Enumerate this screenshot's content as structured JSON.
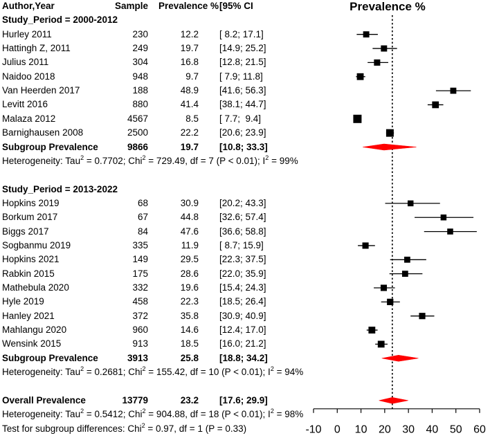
{
  "columns": {
    "author": "Author,Year",
    "sample": "Sample",
    "prevalence": "Prevalence %",
    "ci": "[95% CI"
  },
  "plot_title": "Prevalence %",
  "groups": [
    {
      "title": "Study_Period = 2000-2012",
      "studies": [
        {
          "name": "Hurley 2011",
          "sample": "230",
          "prev": "12.2",
          "ci": "[ 8.2; 17.1]"
        },
        {
          "name": "Hattingh Z, 2011",
          "sample": "249",
          "prev": "19.7",
          "ci": "[14.9; 25.2]"
        },
        {
          "name": "Julius 2011",
          "sample": "304",
          "prev": "16.8",
          "ci": "[12.8; 21.5]"
        },
        {
          "name": "Naidoo 2018",
          "sample": "948",
          "prev": "9.7",
          "ci": "[ 7.9; 11.8]"
        },
        {
          "name": "Van Heerden 2017",
          "sample": "188",
          "prev": "48.9",
          "ci": "[41.6; 56.3]"
        },
        {
          "name": "Levitt 2016",
          "sample": "880",
          "prev": "41.4",
          "ci": "[38.1; 44.7]"
        },
        {
          "name": "Malaza 2012",
          "sample": "4567",
          "prev": "8.5",
          "ci": "[ 7.7;  9.4]"
        },
        {
          "name": "Barnighausen 2008",
          "sample": "2500",
          "prev": "22.2",
          "ci": "[20.6; 23.9]"
        }
      ],
      "subgroup": {
        "label": "Subgroup Prevalence",
        "sample": "9866",
        "prev": "19.7",
        "ci": "[10.8; 33.3]"
      },
      "heterogeneity": {
        "a": "Heterogeneity: Tau",
        "b": " = 0.7702; Chi",
        "c": " = 729.49, df = 7 (P < 0.01); I",
        "d": " = 99%"
      }
    },
    {
      "title": "Study_Period = 2013-2022",
      "studies": [
        {
          "name": "Hopkins 2019",
          "sample": "68",
          "prev": "30.9",
          "ci": "[20.2; 43.3]"
        },
        {
          "name": "Borkum 2017",
          "sample": "67",
          "prev": "44.8",
          "ci": "[32.6; 57.4]"
        },
        {
          "name": "Biggs 2017",
          "sample": "84",
          "prev": "47.6",
          "ci": "[36.6; 58.8]"
        },
        {
          "name": "Sogbanmu 2019",
          "sample": "335",
          "prev": "11.9",
          "ci": "[ 8.7; 15.9]"
        },
        {
          "name": "Hopkins 2021",
          "sample": "149",
          "prev": "29.5",
          "ci": "[22.3; 37.5]"
        },
        {
          "name": "Rabkin 2015",
          "sample": "175",
          "prev": "28.6",
          "ci": "[22.0; 35.9]"
        },
        {
          "name": "Mathebula 2020",
          "sample": "332",
          "prev": "19.6",
          "ci": "[15.4; 24.3]"
        },
        {
          "name": "Hyle 2019",
          "sample": "458",
          "prev": "22.3",
          "ci": "[18.5; 26.4]"
        },
        {
          "name": "Hanley 2021",
          "sample": "372",
          "prev": "35.8",
          "ci": "[30.9; 40.9]"
        },
        {
          "name": "Mahlangu 2020",
          "sample": "960",
          "prev": "14.6",
          "ci": "[12.4; 17.0]"
        },
        {
          "name": "Wensink 2015",
          "sample": "913",
          "prev": "18.5",
          "ci": "[16.0; 21.2]"
        }
      ],
      "subgroup": {
        "label": "Subgroup Prevalence",
        "sample": "3913",
        "prev": "25.8",
        "ci": "[18.8; 34.2]"
      },
      "heterogeneity": {
        "a": "Heterogeneity: Tau",
        "b": " = 0.2681; Chi",
        "c": " = 155.42, df = 10 (P < 0.01); I",
        "d": " = 94%"
      }
    }
  ],
  "overall": {
    "label": "Overall Prevalence",
    "sample": "13779",
    "prev": "23.2",
    "ci": "[17.6; 29.9]"
  },
  "overall_heterogeneity": {
    "a": "Heterogeneity: Tau",
    "b": " = 0.5412; Chi",
    "c": " = 904.88, df = 18 (P < 0.01); I",
    "d": " = 98%"
  },
  "subgroup_test": {
    "a": "Test for subgroup differences: Chi",
    "b": " = 0.97, df = 1 (P = 0.33)"
  },
  "sup2": "2",
  "chart_data": {
    "type": "forest",
    "title": "Prevalence %",
    "xlim": [
      -10,
      60
    ],
    "ticks": [
      -10,
      0,
      10,
      20,
      30,
      40,
      50,
      60
    ],
    "tick_labels": [
      "-10",
      "0",
      "10",
      "20",
      "30",
      "40",
      "50",
      "60"
    ],
    "reference_line": 23.2,
    "colors": {
      "box": "#000000",
      "diamond": "#ff0000",
      "line": "#000000"
    },
    "groups": [
      {
        "studies": [
          {
            "est": 12.2,
            "lo": 8.2,
            "hi": 17.1,
            "weight": 230
          },
          {
            "est": 19.7,
            "lo": 14.9,
            "hi": 25.2,
            "weight": 249
          },
          {
            "est": 16.8,
            "lo": 12.8,
            "hi": 21.5,
            "weight": 304
          },
          {
            "est": 9.7,
            "lo": 7.9,
            "hi": 11.8,
            "weight": 948
          },
          {
            "est": 48.9,
            "lo": 41.6,
            "hi": 56.3,
            "weight": 188
          },
          {
            "est": 41.4,
            "lo": 38.1,
            "hi": 44.7,
            "weight": 880
          },
          {
            "est": 8.5,
            "lo": 7.7,
            "hi": 9.4,
            "weight": 4567
          },
          {
            "est": 22.2,
            "lo": 20.6,
            "hi": 23.9,
            "weight": 2500
          }
        ],
        "subgroup": {
          "est": 19.7,
          "lo": 10.8,
          "hi": 33.3
        }
      },
      {
        "studies": [
          {
            "est": 30.9,
            "lo": 20.2,
            "hi": 43.3,
            "weight": 68
          },
          {
            "est": 44.8,
            "lo": 32.6,
            "hi": 57.4,
            "weight": 67
          },
          {
            "est": 47.6,
            "lo": 36.6,
            "hi": 58.8,
            "weight": 84
          },
          {
            "est": 11.9,
            "lo": 8.7,
            "hi": 15.9,
            "weight": 335
          },
          {
            "est": 29.5,
            "lo": 22.3,
            "hi": 37.5,
            "weight": 149
          },
          {
            "est": 28.6,
            "lo": 22.0,
            "hi": 35.9,
            "weight": 175
          },
          {
            "est": 19.6,
            "lo": 15.4,
            "hi": 24.3,
            "weight": 332
          },
          {
            "est": 22.3,
            "lo": 18.5,
            "hi": 26.4,
            "weight": 458
          },
          {
            "est": 35.8,
            "lo": 30.9,
            "hi": 40.9,
            "weight": 372
          },
          {
            "est": 14.6,
            "lo": 12.4,
            "hi": 17.0,
            "weight": 960
          },
          {
            "est": 18.5,
            "lo": 16.0,
            "hi": 21.2,
            "weight": 913
          }
        ],
        "subgroup": {
          "est": 25.8,
          "lo": 18.8,
          "hi": 34.2
        }
      }
    ],
    "overall": {
      "est": 23.2,
      "lo": 17.6,
      "hi": 29.9
    }
  }
}
